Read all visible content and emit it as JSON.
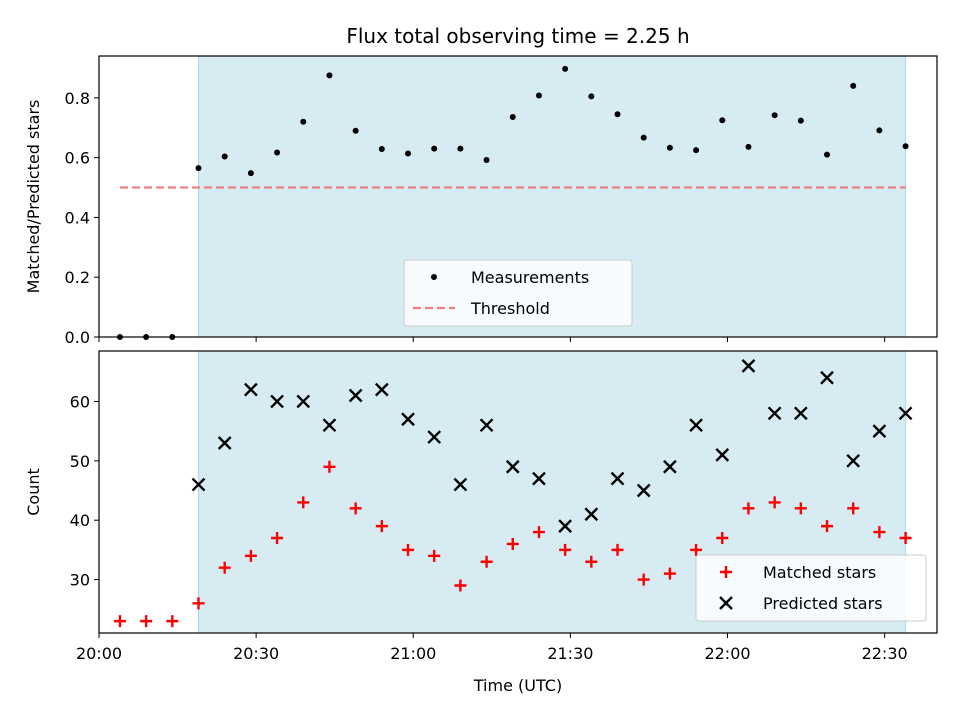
{
  "chart_data": [
    {
      "type": "scatter",
      "title": "Flux total observing time = 2.25 h",
      "ylabel": "Matched/Predicted stars",
      "ylim": [
        0,
        0.94
      ],
      "yticks": [
        "0.0",
        "0.2",
        "0.4",
        "0.6",
        "0.8"
      ],
      "ytick_values": [
        0,
        0.2,
        0.4,
        0.6,
        0.8
      ],
      "xlim": [
        "20:00",
        "22:40"
      ],
      "shaded_interval": [
        "20:19",
        "22:34"
      ],
      "shade_color": "#add8e6",
      "legend_position": "lower center",
      "series": [
        {
          "name": "Measurements",
          "marker": "dot",
          "color": "#000000",
          "x": [
            "20:04",
            "20:09",
            "20:14",
            "20:19",
            "20:24",
            "20:29",
            "20:34",
            "20:39",
            "20:44",
            "20:49",
            "20:54",
            "20:59",
            "21:04",
            "21:09",
            "21:14",
            "21:19",
            "21:24",
            "21:29",
            "21:34",
            "21:39",
            "21:44",
            "21:49",
            "21:54",
            "21:59",
            "22:04",
            "22:09",
            "22:14",
            "22:19",
            "22:24",
            "22:29",
            "22:34"
          ],
          "y": [
            0.0,
            0.0,
            0.0,
            0.565,
            0.604,
            0.548,
            0.617,
            0.72,
            0.875,
            0.69,
            0.629,
            0.614,
            0.63,
            0.63,
            0.592,
            0.736,
            0.808,
            0.897,
            0.805,
            0.745,
            0.667,
            0.633,
            0.625,
            0.725,
            0.636,
            0.742,
            0.724,
            0.61,
            0.84,
            0.691,
            0.638
          ]
        },
        {
          "name": "Threshold",
          "marker": "dashed-line",
          "color": "#f08080",
          "x": [
            "20:04",
            "22:34"
          ],
          "y": [
            0.5,
            0.5
          ]
        }
      ]
    },
    {
      "type": "scatter",
      "xlabel": "Time (UTC)",
      "ylabel": "Count",
      "ylim": [
        21,
        68.5
      ],
      "yticks": [
        "30",
        "40",
        "50",
        "60"
      ],
      "ytick_values": [
        30,
        40,
        50,
        60
      ],
      "xlim": [
        "20:00",
        "22:40"
      ],
      "xticks": [
        "20:00",
        "20:30",
        "21:00",
        "21:30",
        "22:00",
        "22:30"
      ],
      "shaded_interval": [
        "20:19",
        "22:34"
      ],
      "shade_color": "#add8e6",
      "legend_position": "lower right",
      "series": [
        {
          "name": "Matched stars",
          "marker": "plus",
          "color": "#ff0000",
          "x": [
            "20:04",
            "20:09",
            "20:14",
            "20:19",
            "20:24",
            "20:29",
            "20:34",
            "20:39",
            "20:44",
            "20:49",
            "20:54",
            "20:59",
            "21:04",
            "21:09",
            "21:14",
            "21:19",
            "21:24",
            "21:29",
            "21:34",
            "21:39",
            "21:44",
            "21:49",
            "21:54",
            "21:59",
            "22:04",
            "22:09",
            "22:14",
            "22:19",
            "22:24",
            "22:29",
            "22:34"
          ],
          "y": [
            23,
            23,
            23,
            26,
            32,
            34,
            37,
            43,
            49,
            42,
            39,
            35,
            34,
            29,
            33,
            36,
            38,
            35,
            33,
            35,
            30,
            31,
            35,
            37,
            42,
            43,
            42,
            39,
            42,
            38,
            37
          ]
        },
        {
          "name": "Predicted stars",
          "marker": "x",
          "color": "#000000",
          "x": [
            "20:19",
            "20:24",
            "20:29",
            "20:34",
            "20:39",
            "20:44",
            "20:49",
            "20:54",
            "20:59",
            "21:04",
            "21:09",
            "21:14",
            "21:19",
            "21:24",
            "21:29",
            "21:34",
            "21:39",
            "21:44",
            "21:49",
            "21:54",
            "21:59",
            "22:04",
            "22:09",
            "22:14",
            "22:19",
            "22:24",
            "22:29",
            "22:34"
          ],
          "y": [
            46,
            53,
            62,
            60,
            60,
            56,
            61,
            62,
            57,
            54,
            46,
            56,
            49,
            47,
            39,
            41,
            47,
            45,
            49,
            56,
            51,
            66,
            58,
            58,
            64,
            50,
            55,
            58
          ]
        }
      ]
    }
  ]
}
